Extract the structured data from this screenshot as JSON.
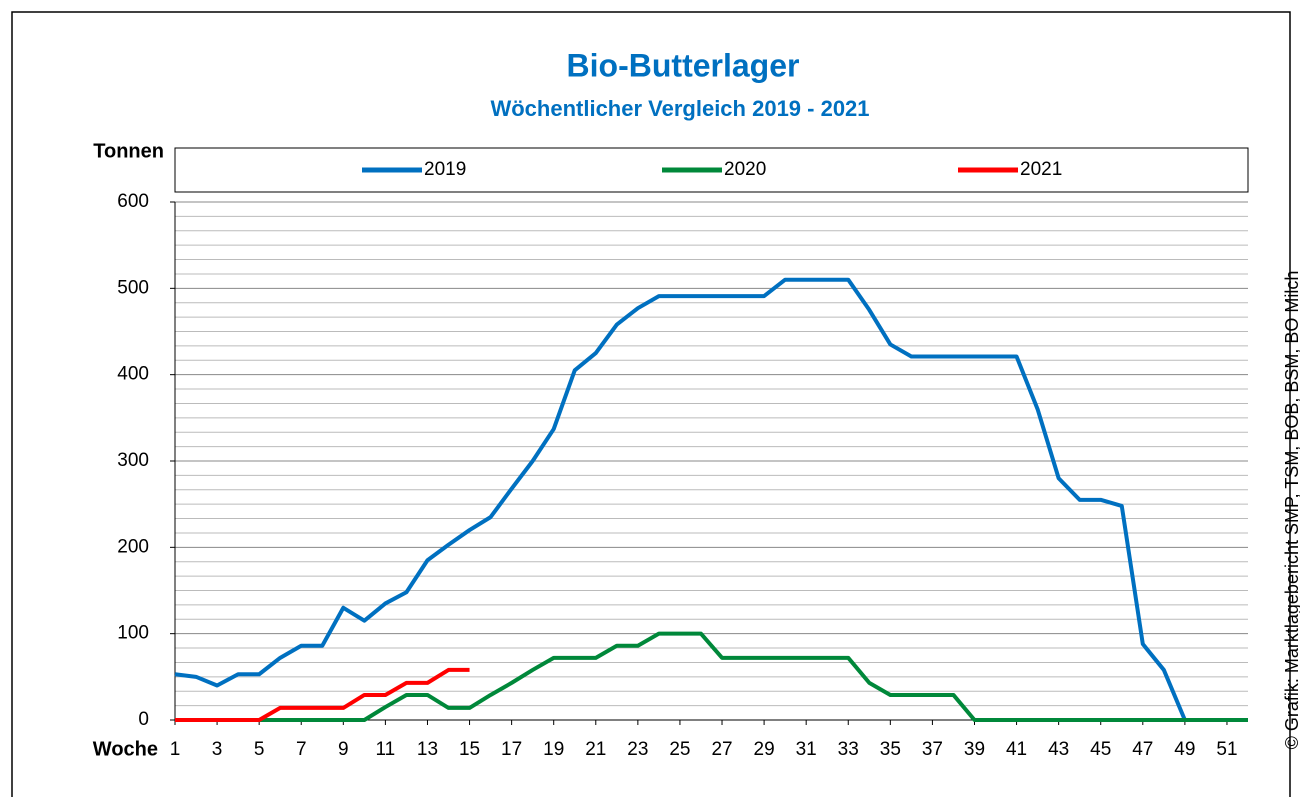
{
  "chart_data": {
    "type": "line",
    "title": "Bio-Butterlager",
    "subtitle": "Wöchentlicher Vergleich 2019 - 2021",
    "y_label": "Tonnen",
    "x_label": "Woche",
    "source": "© Grafik: Marktlagebericht SMP, TSM, BOB, BSM, BO Milch",
    "x": [
      1,
      2,
      3,
      4,
      5,
      6,
      7,
      8,
      9,
      10,
      11,
      12,
      13,
      14,
      15,
      16,
      17,
      18,
      19,
      20,
      21,
      22,
      23,
      24,
      25,
      26,
      27,
      28,
      29,
      30,
      31,
      32,
      33,
      34,
      35,
      36,
      37,
      38,
      39,
      40,
      41,
      42,
      43,
      44,
      45,
      46,
      47,
      48,
      49,
      50,
      51,
      52
    ],
    "xlim": [
      1,
      52
    ],
    "xticks": [
      1,
      3,
      5,
      7,
      9,
      11,
      13,
      15,
      17,
      19,
      21,
      23,
      25,
      27,
      29,
      31,
      33,
      35,
      37,
      39,
      41,
      43,
      45,
      47,
      49,
      51
    ],
    "ylim": [
      0,
      600
    ],
    "yticks": [
      0,
      100,
      200,
      300,
      400,
      500,
      600
    ],
    "grid": true,
    "legend": "top",
    "series": [
      {
        "name": "2019",
        "color": "#0070c0",
        "values": [
          53,
          50,
          40,
          53,
          53,
          72,
          86,
          86,
          130,
          115,
          135,
          148,
          185,
          203,
          220,
          235,
          268,
          300,
          337,
          405,
          425,
          458,
          477,
          491,
          491,
          491,
          491,
          491,
          491,
          510,
          510,
          510,
          510,
          475,
          435,
          421,
          421,
          421,
          421,
          421,
          421,
          360,
          280,
          255,
          255,
          248,
          88,
          58,
          0,
          0,
          0,
          0
        ]
      },
      {
        "name": "2020",
        "color": "#00883a",
        "values": [
          0,
          0,
          0,
          0,
          0,
          0,
          0,
          0,
          0,
          0,
          15,
          29,
          29,
          14,
          14,
          29,
          43,
          58,
          72,
          72,
          72,
          86,
          86,
          100,
          100,
          100,
          72,
          72,
          72,
          72,
          72,
          72,
          72,
          43,
          29,
          29,
          29,
          29,
          0,
          0,
          0,
          0,
          0,
          0,
          0,
          0,
          0,
          0,
          0,
          0,
          0,
          0
        ]
      },
      {
        "name": "2021",
        "color": "#ff0000",
        "values": [
          0,
          0,
          0,
          0,
          0,
          14,
          14,
          14,
          14,
          29,
          29,
          43,
          43,
          58,
          58,
          null,
          null,
          null,
          null,
          null,
          null,
          null,
          null,
          null,
          null,
          null,
          null,
          null,
          null,
          null,
          null,
          null,
          null,
          null,
          null,
          null,
          null,
          null,
          null,
          null,
          null,
          null,
          null,
          null,
          null,
          null,
          null,
          null,
          null,
          null,
          null,
          null
        ]
      }
    ]
  }
}
